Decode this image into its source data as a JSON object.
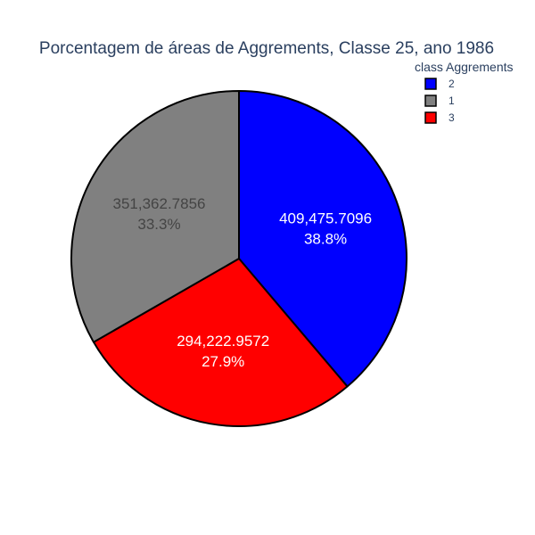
{
  "chart_data": {
    "type": "pie",
    "title": "Porcentagem de áreas de Aggrements, Classe 25, ano 1986",
    "legend": {
      "title": "class Aggrements",
      "placement": "top-right"
    },
    "direction": "clockwise",
    "start": "top",
    "slices": [
      {
        "label": "2",
        "value": 409475.7096,
        "value_text": "409,475.7096",
        "percent_text": "38.8%",
        "color": "#0000ff",
        "text_color": "#ffffff"
      },
      {
        "label": "3",
        "value": 294222.9572,
        "value_text": "294,222.9572",
        "percent_text": "27.9%",
        "color": "#ff0000",
        "text_color": "#ffffff"
      },
      {
        "label": "1",
        "value": 351362.7856,
        "value_text": "351,362.7856",
        "percent_text": "33.3%",
        "color": "#808080",
        "text_color": "#444444"
      }
    ],
    "legend_order": [
      "2",
      "1",
      "3"
    ],
    "title_color": "#2a3f5f",
    "outline_color": "#000000"
  }
}
